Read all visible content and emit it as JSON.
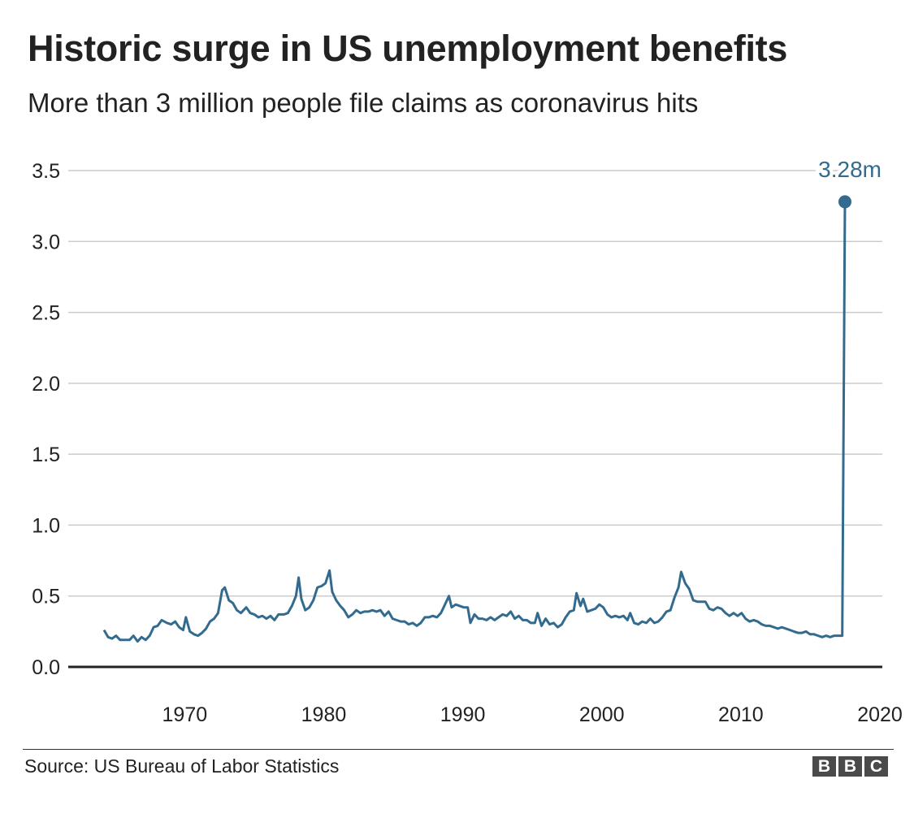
{
  "title": "Historic surge in US unemployment benefits",
  "subtitle": "More than 3 million people file claims as coronavirus hits",
  "source": "Source: US Bureau of Labor Statistics",
  "logo": [
    "B",
    "B",
    "C"
  ],
  "colors": {
    "line": "#336b8f",
    "grid": "#cccccc",
    "axis": "#222222",
    "text": "#222222"
  },
  "chart_data": {
    "type": "line",
    "title": "Historic surge in US unemployment benefits",
    "subtitle": "More than 3 million people file claims as coronavirus hits",
    "xlabel": "",
    "ylabel": "",
    "xlim": [
      1967,
      2020.3
    ],
    "ylim": [
      0,
      3.5
    ],
    "grid": true,
    "y_ticks": [
      {
        "value": 0.0,
        "label": "0.0"
      },
      {
        "value": 0.5,
        "label": "0.5"
      },
      {
        "value": 1.0,
        "label": "1.0"
      },
      {
        "value": 1.5,
        "label": "1.5"
      },
      {
        "value": 2.0,
        "label": "2.0"
      },
      {
        "value": 2.5,
        "label": "2.5"
      },
      {
        "value": 3.0,
        "label": "3.0"
      },
      {
        "value": 3.5,
        "label": "3.5"
      }
    ],
    "x_ticks": [
      {
        "value": 1970,
        "label": "1970"
      },
      {
        "value": 1980,
        "label": "1980"
      },
      {
        "value": 1990,
        "label": "1990"
      },
      {
        "value": 2000,
        "label": "2000"
      },
      {
        "value": 2010,
        "label": "2010"
      },
      {
        "value": 2020,
        "label": "2020"
      }
    ],
    "annotation": {
      "x": 2020.2,
      "y": 3.28,
      "label": "3.28m"
    },
    "series": [
      {
        "points": [
          [
            1967.0,
            0.26
          ],
          [
            1967.3,
            0.21
          ],
          [
            1967.6,
            0.2
          ],
          [
            1967.9,
            0.22
          ],
          [
            1968.2,
            0.19
          ],
          [
            1968.6,
            0.19
          ],
          [
            1968.9,
            0.19
          ],
          [
            1969.2,
            0.22
          ],
          [
            1969.5,
            0.18
          ],
          [
            1969.8,
            0.21
          ],
          [
            1970.1,
            0.19
          ],
          [
            1970.4,
            0.22
          ],
          [
            1970.7,
            0.28
          ],
          [
            1971.0,
            0.29
          ],
          [
            1971.3,
            0.33
          ],
          [
            1971.7,
            0.31
          ],
          [
            1972.0,
            0.3
          ],
          [
            1972.3,
            0.32
          ],
          [
            1972.6,
            0.28
          ],
          [
            1972.9,
            0.26
          ],
          [
            1973.1,
            0.35
          ],
          [
            1973.4,
            0.25
          ],
          [
            1973.7,
            0.23
          ],
          [
            1974.0,
            0.22
          ],
          [
            1974.3,
            0.24
          ],
          [
            1974.6,
            0.27
          ],
          [
            1974.9,
            0.32
          ],
          [
            1975.2,
            0.34
          ],
          [
            1975.5,
            0.38
          ],
          [
            1975.8,
            0.54
          ],
          [
            1976.0,
            0.56
          ],
          [
            1976.3,
            0.47
          ],
          [
            1976.6,
            0.45
          ],
          [
            1976.9,
            0.4
          ],
          [
            1977.2,
            0.38
          ],
          [
            1977.6,
            0.42
          ],
          [
            1977.9,
            0.38
          ],
          [
            1978.2,
            0.37
          ],
          [
            1978.5,
            0.35
          ],
          [
            1978.8,
            0.36
          ],
          [
            1979.1,
            0.34
          ],
          [
            1979.4,
            0.36
          ],
          [
            1979.7,
            0.33
          ],
          [
            1980.0,
            0.37
          ],
          [
            1980.4,
            0.37
          ],
          [
            1980.7,
            0.38
          ],
          [
            1981.0,
            0.43
          ],
          [
            1981.3,
            0.5
          ],
          [
            1981.5,
            0.63
          ],
          [
            1981.7,
            0.48
          ],
          [
            1982.0,
            0.4
          ],
          [
            1982.3,
            0.42
          ],
          [
            1982.6,
            0.47
          ],
          [
            1982.9,
            0.56
          ],
          [
            1983.2,
            0.57
          ],
          [
            1983.5,
            0.59
          ],
          [
            1983.8,
            0.68
          ],
          [
            1984.0,
            0.53
          ],
          [
            1984.3,
            0.47
          ],
          [
            1984.6,
            0.43
          ],
          [
            1984.9,
            0.4
          ],
          [
            1985.2,
            0.35
          ],
          [
            1985.5,
            0.37
          ],
          [
            1985.8,
            0.4
          ],
          [
            1986.1,
            0.38
          ],
          [
            1986.4,
            0.39
          ],
          [
            1986.7,
            0.39
          ],
          [
            1987.0,
            0.4
          ],
          [
            1987.3,
            0.39
          ],
          [
            1987.6,
            0.4
          ],
          [
            1987.9,
            0.36
          ],
          [
            1988.2,
            0.39
          ],
          [
            1988.5,
            0.34
          ],
          [
            1988.8,
            0.33
          ],
          [
            1989.1,
            0.32
          ],
          [
            1989.4,
            0.32
          ],
          [
            1989.7,
            0.3
          ],
          [
            1990.0,
            0.31
          ],
          [
            1990.3,
            0.29
          ],
          [
            1990.6,
            0.31
          ],
          [
            1990.9,
            0.35
          ],
          [
            1991.2,
            0.35
          ],
          [
            1991.5,
            0.36
          ],
          [
            1991.8,
            0.35
          ],
          [
            1992.1,
            0.38
          ],
          [
            1992.4,
            0.44
          ],
          [
            1992.7,
            0.5
          ],
          [
            1992.9,
            0.42
          ],
          [
            1993.2,
            0.44
          ],
          [
            1993.5,
            0.43
          ],
          [
            1993.8,
            0.42
          ],
          [
            1994.1,
            0.42
          ],
          [
            1994.3,
            0.31
          ],
          [
            1994.6,
            0.37
          ],
          [
            1994.9,
            0.34
          ],
          [
            1995.2,
            0.34
          ],
          [
            1995.5,
            0.33
          ],
          [
            1995.8,
            0.35
          ],
          [
            1996.1,
            0.33
          ],
          [
            1996.4,
            0.35
          ],
          [
            1996.7,
            0.37
          ],
          [
            1997.0,
            0.36
          ],
          [
            1997.3,
            0.39
          ],
          [
            1997.6,
            0.34
          ],
          [
            1997.9,
            0.36
          ],
          [
            1998.2,
            0.33
          ],
          [
            1998.5,
            0.33
          ],
          [
            1998.8,
            0.31
          ],
          [
            1999.1,
            0.31
          ],
          [
            1999.3,
            0.38
          ],
          [
            1999.6,
            0.29
          ],
          [
            1999.9,
            0.34
          ],
          [
            2000.2,
            0.3
          ],
          [
            2000.5,
            0.31
          ],
          [
            2000.8,
            0.28
          ],
          [
            2001.1,
            0.3
          ],
          [
            2001.4,
            0.35
          ],
          [
            2001.7,
            0.39
          ],
          [
            2002.0,
            0.4
          ],
          [
            2002.2,
            0.52
          ],
          [
            2002.5,
            0.43
          ],
          [
            2002.7,
            0.48
          ],
          [
            2003.0,
            0.39
          ],
          [
            2003.3,
            0.4
          ],
          [
            2003.6,
            0.41
          ],
          [
            2003.9,
            0.44
          ],
          [
            2004.2,
            0.42
          ],
          [
            2004.5,
            0.37
          ],
          [
            2004.8,
            0.35
          ],
          [
            2005.1,
            0.36
          ],
          [
            2005.4,
            0.35
          ],
          [
            2005.7,
            0.36
          ],
          [
            2006.0,
            0.33
          ],
          [
            2006.2,
            0.38
          ],
          [
            2006.5,
            0.31
          ],
          [
            2006.8,
            0.3
          ],
          [
            2007.1,
            0.32
          ],
          [
            2007.4,
            0.31
          ],
          [
            2007.7,
            0.34
          ],
          [
            2008.0,
            0.31
          ],
          [
            2008.3,
            0.32
          ],
          [
            2008.6,
            0.35
          ],
          [
            2008.9,
            0.39
          ],
          [
            2009.2,
            0.4
          ],
          [
            2009.5,
            0.49
          ],
          [
            2009.8,
            0.56
          ],
          [
            2010.0,
            0.67
          ],
          [
            2010.3,
            0.59
          ],
          [
            2010.6,
            0.55
          ],
          [
            2010.9,
            0.47
          ],
          [
            2011.2,
            0.46
          ],
          [
            2011.5,
            0.46
          ],
          [
            2011.8,
            0.46
          ],
          [
            2012.1,
            0.41
          ],
          [
            2012.4,
            0.4
          ],
          [
            2012.7,
            0.42
          ],
          [
            2013.0,
            0.41
          ],
          [
            2013.3,
            0.38
          ],
          [
            2013.6,
            0.36
          ],
          [
            2013.9,
            0.38
          ],
          [
            2014.2,
            0.36
          ],
          [
            2014.5,
            0.38
          ],
          [
            2014.8,
            0.34
          ],
          [
            2015.1,
            0.32
          ],
          [
            2015.4,
            0.33
          ],
          [
            2015.7,
            0.32
          ],
          [
            2016.0,
            0.3
          ],
          [
            2016.3,
            0.29
          ],
          [
            2016.6,
            0.29
          ],
          [
            2016.9,
            0.28
          ],
          [
            2017.2,
            0.27
          ],
          [
            2017.5,
            0.28
          ],
          [
            2017.8,
            0.27
          ],
          [
            2018.1,
            0.26
          ],
          [
            2018.4,
            0.25
          ],
          [
            2018.7,
            0.24
          ],
          [
            2019.0,
            0.24
          ],
          [
            2019.3,
            0.25
          ],
          [
            2019.6,
            0.23
          ],
          [
            2019.9,
            0.23
          ],
          [
            2020.2,
            0.22
          ],
          [
            2020.5,
            0.21
          ],
          [
            2020.8,
            0.22
          ],
          [
            2021.1,
            0.21
          ],
          [
            2021.4,
            0.22
          ],
          [
            2021.7,
            0.22
          ],
          [
            2022.0,
            0.22
          ],
          [
            2022.2,
            3.28
          ]
        ]
      }
    ]
  }
}
